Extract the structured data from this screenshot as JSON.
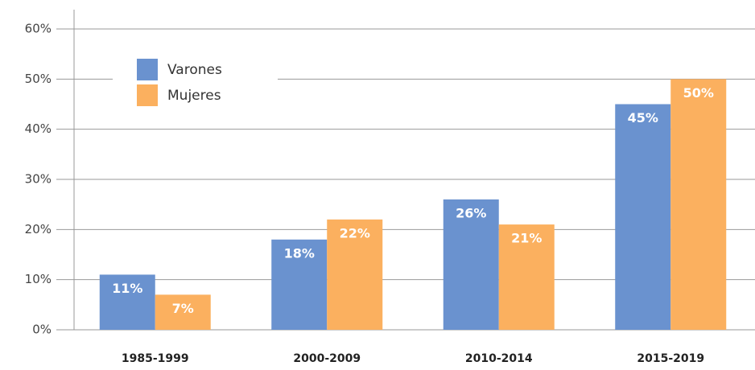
{
  "chart_data": {
    "type": "bar",
    "categories": [
      "1985-1999",
      "2000-2009",
      "2010-2014",
      "2015-2019"
    ],
    "series": [
      {
        "name": "Varones",
        "color": "#6a92cf",
        "values": [
          11,
          18,
          26,
          45
        ],
        "value_labels": [
          "11%",
          "18%",
          "26%",
          "45%"
        ]
      },
      {
        "name": "Mujeres",
        "color": "#fbb05f",
        "values": [
          7,
          22,
          21,
          50
        ],
        "value_labels": [
          "7%",
          "22%",
          "21%",
          "50%"
        ]
      }
    ],
    "ylim": [
      0,
      60
    ],
    "yticks": [
      {
        "value": 0,
        "label": "0%"
      },
      {
        "value": 10,
        "label": "10%"
      },
      {
        "value": 20,
        "label": "20%"
      },
      {
        "value": 30,
        "label": "30%"
      },
      {
        "value": 40,
        "label": "40%"
      },
      {
        "value": 50,
        "label": "50%"
      },
      {
        "value": 60,
        "label": "60%"
      }
    ],
    "grid": true,
    "legend": "top-left"
  }
}
